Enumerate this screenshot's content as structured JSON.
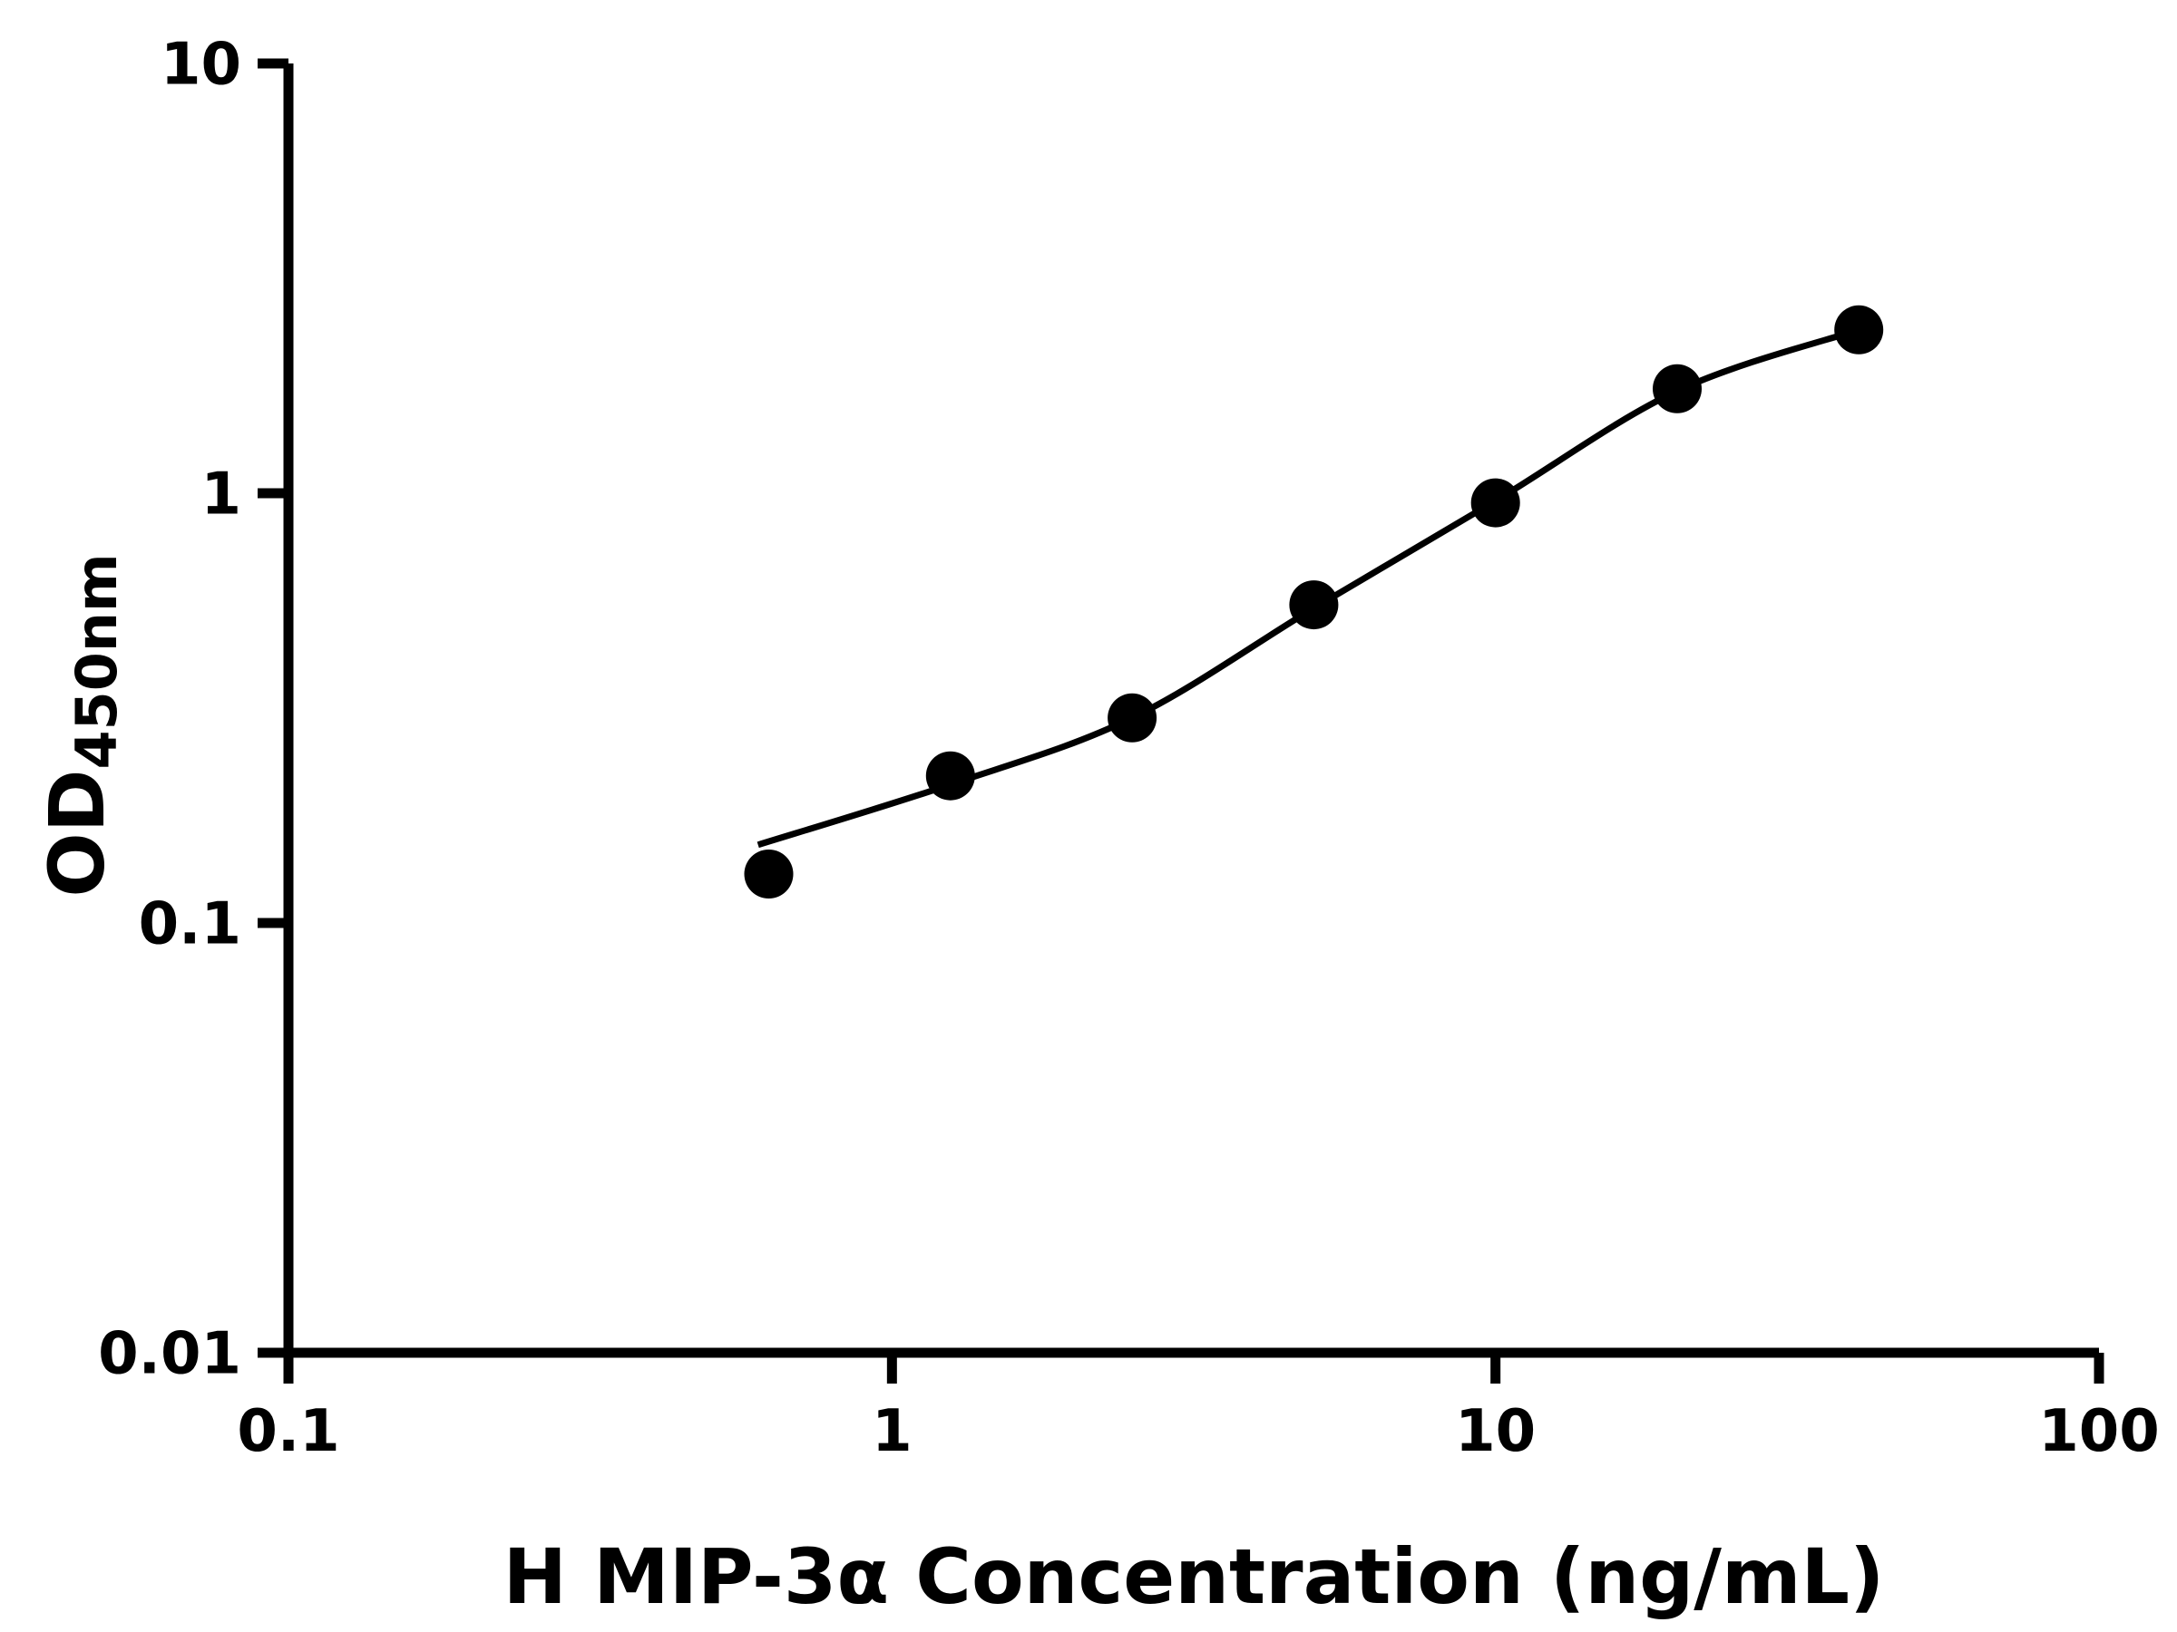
{
  "chart_data": {
    "type": "scatter",
    "title": "",
    "xlabel": "H MIP-3α Concentration (ng/mL)",
    "ylabel": "OD450nm",
    "ylabel_main": "OD",
    "ylabel_sub": "450nm",
    "xscale": "log",
    "yscale": "log",
    "xlim": [
      0.1,
      100
    ],
    "ylim": [
      0.01,
      10
    ],
    "x_ticks": [
      "0.1",
      "1",
      "10",
      "100"
    ],
    "y_ticks": [
      "0.01",
      "0.1",
      "1",
      "10"
    ],
    "grid": false,
    "legend": null,
    "points": {
      "x": [
        0.625,
        1.25,
        2.5,
        5,
        10,
        20,
        40
      ],
      "y": [
        0.13,
        0.22,
        0.3,
        0.55,
        0.95,
        1.75,
        2.4
      ]
    },
    "fit_curve": {
      "model": "4PL sigmoidal fit",
      "x": [
        0.6,
        1.25,
        2.5,
        5,
        10,
        20,
        40
      ],
      "y": [
        0.152,
        0.21,
        0.3,
        0.54,
        0.96,
        1.73,
        2.4
      ]
    },
    "marker": {
      "shape": "circle",
      "color": "#000000",
      "radius_px": 27
    },
    "line_color": "#000000",
    "axis_color": "#000000",
    "background": "#ffffff"
  }
}
